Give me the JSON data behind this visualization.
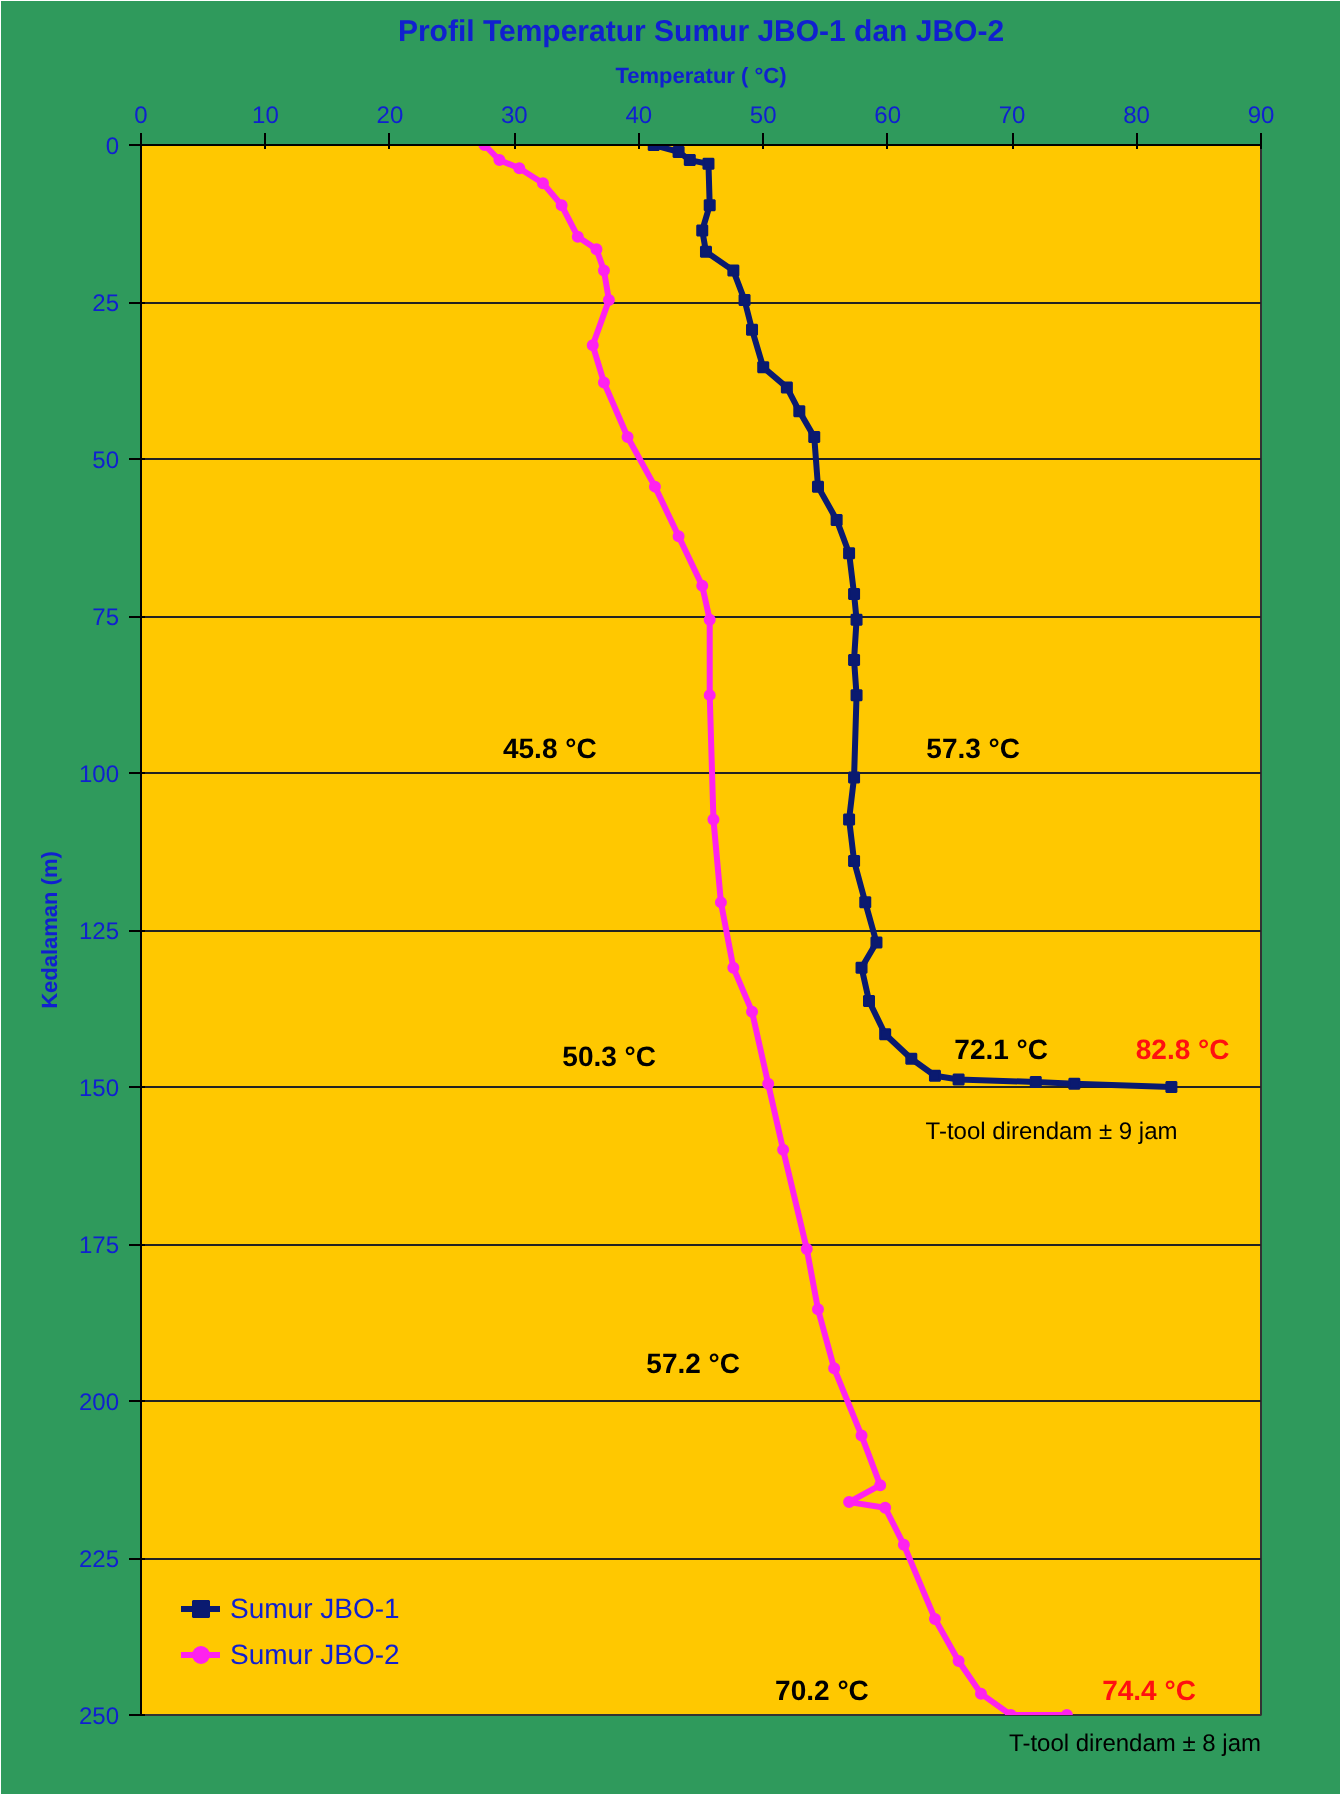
{
  "chart_data": {
    "type": "line",
    "title": "Profil Temperatur Sumur JBO-1 dan JBO-2",
    "xlabel": "Temperatur ( °C)",
    "ylabel": "Kedalaman (m)",
    "xlim": [
      0,
      90
    ],
    "xticks": [
      0,
      10,
      20,
      30,
      40,
      50,
      60,
      70,
      80,
      90
    ],
    "ylim": [
      250,
      0
    ],
    "yticks": [
      0,
      25,
      50,
      75,
      100,
      125,
      150,
      175,
      200,
      225,
      250
    ],
    "grid": "y",
    "legend": "bottom left",
    "series": [
      {
        "name": "Sumur JBO-1",
        "color": "#0a1a70",
        "marker": "square",
        "x": [
          41.2,
          43.2,
          44.1,
          45.6,
          45.7,
          45.1,
          45.4,
          47.6,
          48.5,
          49.1,
          50.0,
          51.9,
          52.9,
          54.1,
          54.4,
          55.9,
          56.9,
          57.3,
          57.5,
          57.3,
          57.5,
          57.3,
          56.9,
          57.3,
          58.2,
          59.1,
          57.9,
          58.5,
          59.8,
          61.9,
          63.8,
          65.7,
          71.9,
          75.0,
          82.8
        ],
        "values": [
          0,
          1.1,
          2.4,
          3,
          9.6,
          13.6,
          17,
          20,
          24.7,
          29.4,
          35.4,
          38.6,
          42.4,
          46.5,
          54.4,
          59.7,
          65,
          71.5,
          75.6,
          82,
          87.6,
          100.7,
          107.4,
          114,
          120.6,
          127,
          131,
          136.3,
          141.6,
          145.5,
          148.2,
          148.8,
          149.2,
          149.5,
          150
        ]
      },
      {
        "name": "Sumur JBO-2",
        "color": "#ff22ee",
        "marker": "circle",
        "x": [
          27.6,
          28.8,
          30.4,
          32.3,
          33.8,
          35.1,
          36.6,
          37.2,
          37.6,
          36.3,
          37.2,
          39.1,
          41.3,
          43.2,
          45.1,
          45.7,
          45.7,
          46.0,
          46.6,
          47.6,
          49.1,
          50.4,
          51.6,
          53.5,
          54.4,
          55.7,
          57.9,
          59.4,
          56.9,
          59.8,
          61.3,
          63.8,
          65.7,
          67.5,
          69.9,
          74.4
        ],
        "values": [
          0,
          2.4,
          3.7,
          6.1,
          9.6,
          14.6,
          16.6,
          20,
          24.7,
          31.9,
          37.8,
          46.5,
          54.4,
          62.3,
          70.2,
          75.6,
          87.6,
          107.4,
          120.6,
          131,
          138,
          149.5,
          160,
          175.8,
          185.4,
          194.8,
          205.5,
          213.4,
          216.1,
          217,
          222.9,
          234.7,
          241.4,
          246.6,
          250,
          250
        ]
      }
    ],
    "annotations": [
      "45.8 °C",
      "57.3 °C",
      "72.1 °C",
      "82.8 °C",
      "50.3 °C",
      "T-tool direndam ± 9 jam",
      "57.2 °C",
      "70.2 °C",
      "74.4 °C",
      "T-tool direndam ± 8 jam"
    ]
  }
}
